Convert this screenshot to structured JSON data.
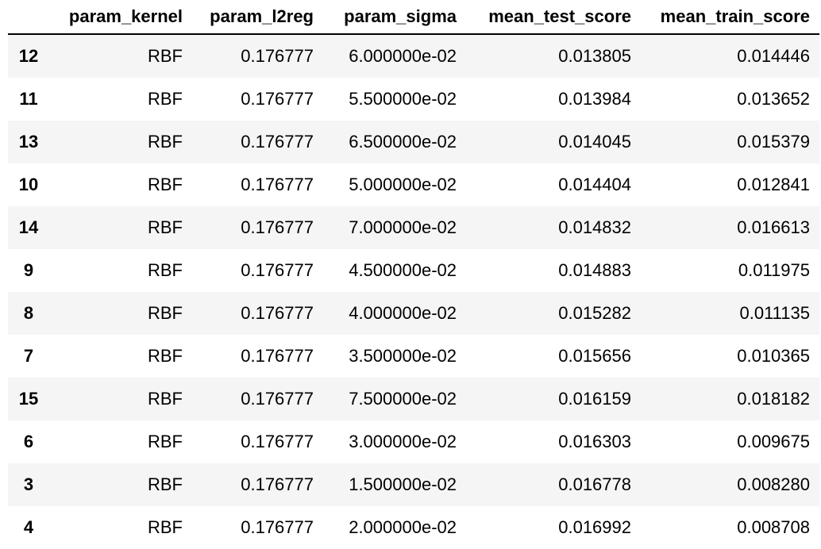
{
  "table": {
    "columns": [
      "",
      "param_kernel",
      "param_l2reg",
      "param_sigma",
      "mean_test_score",
      "mean_train_score"
    ],
    "rows": [
      {
        "index": "12",
        "kernel": "RBF",
        "l2reg": "0.176777",
        "sigma": "6.000000e-02",
        "test": "0.013805",
        "train": "0.014446"
      },
      {
        "index": "11",
        "kernel": "RBF",
        "l2reg": "0.176777",
        "sigma": "5.500000e-02",
        "test": "0.013984",
        "train": "0.013652"
      },
      {
        "index": "13",
        "kernel": "RBF",
        "l2reg": "0.176777",
        "sigma": "6.500000e-02",
        "test": "0.014045",
        "train": "0.015379"
      },
      {
        "index": "10",
        "kernel": "RBF",
        "l2reg": "0.176777",
        "sigma": "5.000000e-02",
        "test": "0.014404",
        "train": "0.012841"
      },
      {
        "index": "14",
        "kernel": "RBF",
        "l2reg": "0.176777",
        "sigma": "7.000000e-02",
        "test": "0.014832",
        "train": "0.016613"
      },
      {
        "index": "9",
        "kernel": "RBF",
        "l2reg": "0.176777",
        "sigma": "4.500000e-02",
        "test": "0.014883",
        "train": "0.011975"
      },
      {
        "index": "8",
        "kernel": "RBF",
        "l2reg": "0.176777",
        "sigma": "4.000000e-02",
        "test": "0.015282",
        "train": "0.011135"
      },
      {
        "index": "7",
        "kernel": "RBF",
        "l2reg": "0.176777",
        "sigma": "3.500000e-02",
        "test": "0.015656",
        "train": "0.010365"
      },
      {
        "index": "15",
        "kernel": "RBF",
        "l2reg": "0.176777",
        "sigma": "7.500000e-02",
        "test": "0.016159",
        "train": "0.018182"
      },
      {
        "index": "6",
        "kernel": "RBF",
        "l2reg": "0.176777",
        "sigma": "3.000000e-02",
        "test": "0.016303",
        "train": "0.009675"
      },
      {
        "index": "3",
        "kernel": "RBF",
        "l2reg": "0.176777",
        "sigma": "1.500000e-02",
        "test": "0.016778",
        "train": "0.008280"
      },
      {
        "index": "4",
        "kernel": "RBF",
        "l2reg": "0.176777",
        "sigma": "2.000000e-02",
        "test": "0.016992",
        "train": "0.008708"
      }
    ]
  }
}
